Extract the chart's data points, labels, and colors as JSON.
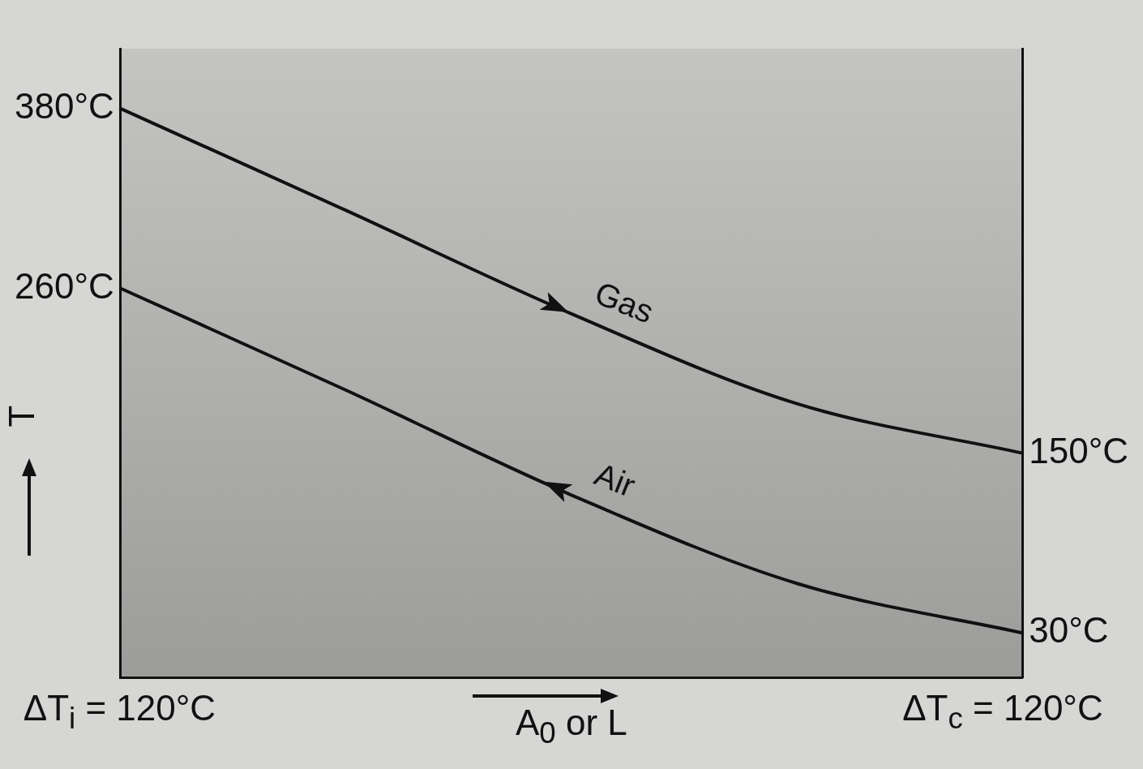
{
  "chart_data": {
    "type": "line",
    "xlabel": "A$_{0}$ or L",
    "ylabel": "T",
    "categories": [
      null,
      null,
      null,
      null,
      null
    ],
    "series": [
      {
        "name": "Gas",
        "color": "#111111",
        "values": [
          380,
          312,
          243,
          183,
          150
        ]
      },
      {
        "name": "Air",
        "color": "#111111",
        "values": [
          260,
          192,
          122,
          63,
          30
        ]
      }
    ],
    "ylim": [
      0,
      420
    ],
    "yticks": [
      {
        "value": 380,
        "label": "380°C"
      },
      {
        "value": 260,
        "label": "260°C"
      }
    ],
    "y2lim": [
      0,
      420
    ],
    "y2ticks": [
      {
        "value": 150,
        "label": "150°C"
      },
      {
        "value": 30,
        "label": "30°C"
      }
    ],
    "annotations": [
      "ΔT$_{i}$ = 120°C",
      "ΔT$_{c}$ = 120°C"
    ],
    "legend": "center",
    "grid": false,
    "marker": "none",
    "line_style": "solid"
  }
}
